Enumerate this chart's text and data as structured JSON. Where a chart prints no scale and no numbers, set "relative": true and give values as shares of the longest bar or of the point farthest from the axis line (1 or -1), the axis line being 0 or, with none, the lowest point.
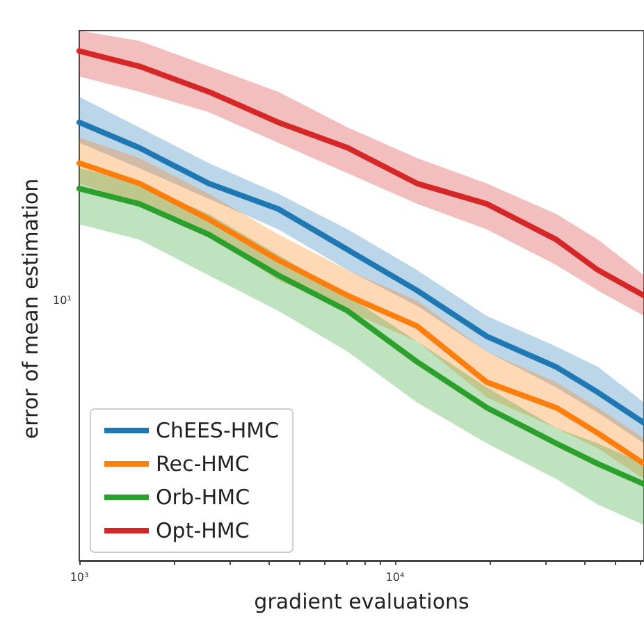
{
  "chart_data": {
    "type": "line",
    "xlabel": "gradient evaluations",
    "ylabel": "error of mean estimation",
    "log": "x",
    "relative": true,
    "grid": false,
    "legend": "bottom left",
    "marker": "none",
    "line_style": "solid",
    "annotations": [
      "10¹"
    ],
    "x": [
      1000,
      1550,
      2570,
      4270,
      7080,
      11750,
      19540,
      32430,
      43950,
      61500
    ],
    "xlim": [
      1000,
      61500
    ],
    "xticks": [
      {
        "value": 1000,
        "label": "10³"
      },
      {
        "value": 2000,
        "label": null
      },
      {
        "value": 3000,
        "label": null
      },
      {
        "value": 4000,
        "label": null
      },
      {
        "value": 5000,
        "label": null
      },
      {
        "value": 6000,
        "label": null
      },
      {
        "value": 7000,
        "label": null
      },
      {
        "value": 8000,
        "label": null
      },
      {
        "value": 9000,
        "label": null
      },
      {
        "value": 10000,
        "label": "10⁴"
      },
      {
        "value": 20000,
        "label": null
      },
      {
        "value": 30000,
        "label": null
      },
      {
        "value": 40000,
        "label": null
      },
      {
        "value": 50000,
        "label": null
      },
      {
        "value": 60000,
        "label": null
      }
    ],
    "series": [
      {
        "name": "ChEES-HMC",
        "color": "#1f77b4",
        "values": [
          0.86,
          0.81,
          0.74,
          0.69,
          0.61,
          0.53,
          0.44,
          0.38,
          0.33,
          0.27
        ],
        "upper": [
          0.91,
          0.85,
          0.78,
          0.72,
          0.65,
          0.57,
          0.48,
          0.42,
          0.38,
          0.31
        ],
        "lower": [
          0.82,
          0.77,
          0.71,
          0.65,
          0.57,
          0.5,
          0.41,
          0.34,
          0.29,
          0.23
        ]
      },
      {
        "name": "Rec-HMC",
        "color": "#ff7f0e",
        "values": [
          0.78,
          0.74,
          0.67,
          0.59,
          0.52,
          0.46,
          0.35,
          0.3,
          0.25,
          0.19
        ],
        "upper": [
          0.83,
          0.79,
          0.72,
          0.64,
          0.57,
          0.51,
          0.41,
          0.35,
          0.3,
          0.24
        ],
        "lower": [
          0.74,
          0.7,
          0.64,
          0.55,
          0.49,
          0.43,
          0.32,
          0.26,
          0.22,
          0.16
        ]
      },
      {
        "name": "Orb-HMC",
        "color": "#2ca02c",
        "values": [
          0.73,
          0.7,
          0.64,
          0.56,
          0.49,
          0.39,
          0.3,
          0.23,
          0.19,
          0.15
        ],
        "upper": [
          0.77,
          0.74,
          0.68,
          0.6,
          0.52,
          0.43,
          0.34,
          0.26,
          0.23,
          0.19
        ],
        "lower": [
          0.66,
          0.63,
          0.56,
          0.49,
          0.41,
          0.31,
          0.23,
          0.16,
          0.11,
          0.07
        ]
      },
      {
        "name": "Opt-HMC",
        "color": "#d62728",
        "values": [
          1,
          0.97,
          0.92,
          0.86,
          0.81,
          0.74,
          0.7,
          0.63,
          0.57,
          0.52
        ],
        "upper": [
          1.04,
          1.02,
          0.97,
          0.92,
          0.85,
          0.79,
          0.74,
          0.68,
          0.63,
          0.56
        ],
        "lower": [
          0.95,
          0.92,
          0.88,
          0.82,
          0.76,
          0.7,
          0.65,
          0.58,
          0.53,
          0.48
        ]
      }
    ]
  }
}
